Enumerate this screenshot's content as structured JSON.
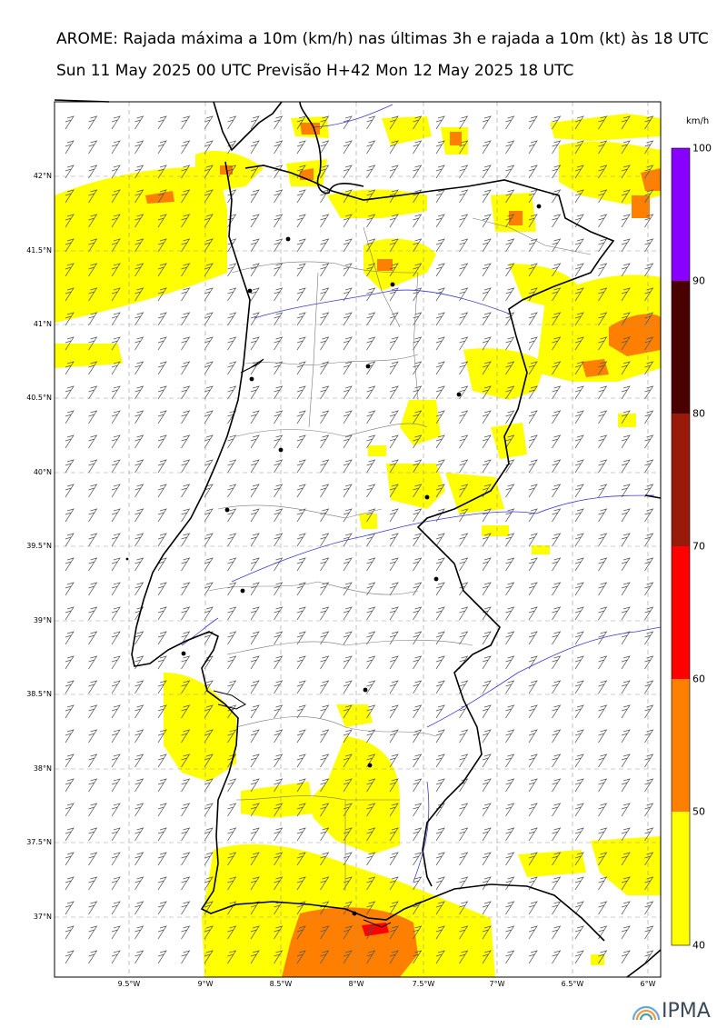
{
  "header": {
    "title_line1": "AROME: Rajada máxima a 10m (km/h) nas últimas 3h e rajada a 10m (kt) às 18 UTC",
    "title_line2": "Sun 11 May 2025 00 UTC Previsão H+42 Mon 12 May 2025 18 UTC"
  },
  "axes": {
    "lat_labels": [
      "42°N",
      "41.5°N",
      "41°N",
      "40.5°N",
      "40°N",
      "39.5°N",
      "39°N",
      "38.5°N",
      "38°N",
      "37.5°N",
      "37°N"
    ],
    "lon_labels": [
      "9.5°W",
      "9°W",
      "8.5°W",
      "8°W",
      "7.5°W",
      "7°W",
      "6.5°W",
      "6°W"
    ]
  },
  "colorbar": {
    "units": "km/h",
    "levels": [
      "100",
      "90",
      "80",
      "70",
      "60",
      "50",
      "40"
    ],
    "colors": [
      "#8800ff",
      "#4a0000",
      "#9a1a0a",
      "#ff0000",
      "#ff7f00",
      "#ffff00"
    ]
  },
  "logo": {
    "text": "IPMA"
  }
}
